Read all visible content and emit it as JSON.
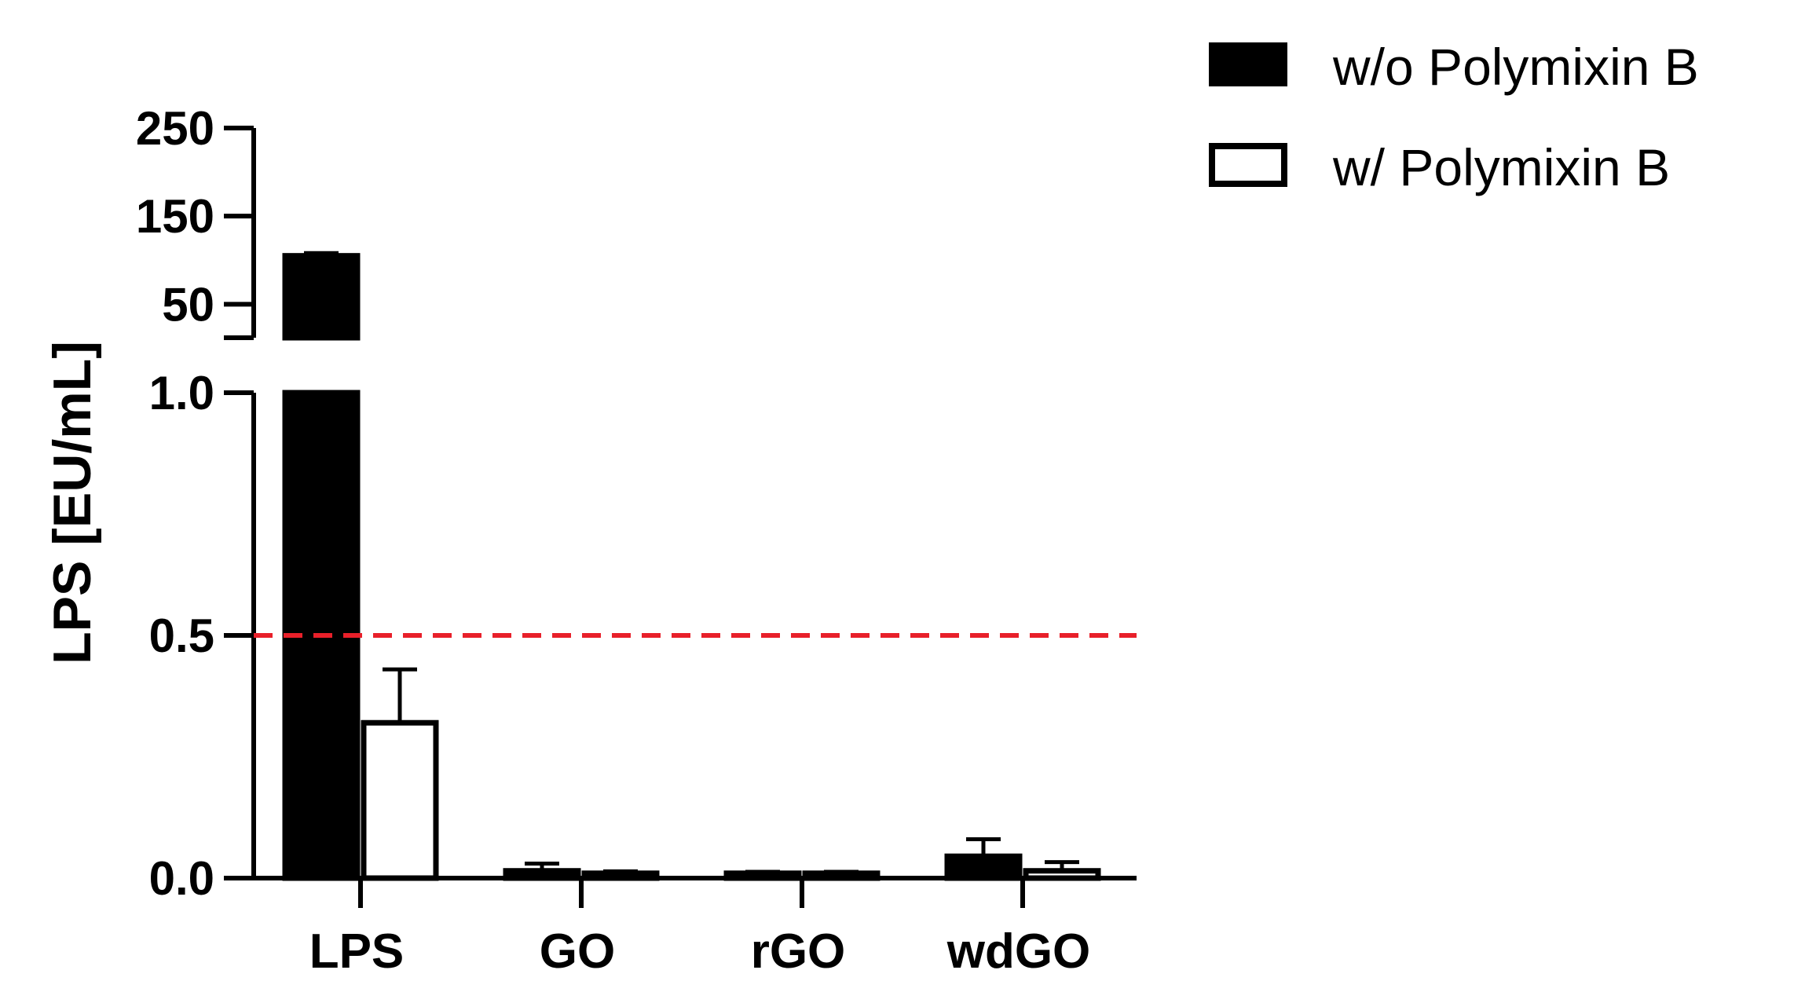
{
  "chart_data": {
    "type": "bar",
    "title": "",
    "xlabel": "",
    "ylabel": "LPS [EU/mL]",
    "categories": [
      "LPS",
      "GO",
      "rGO",
      "wdGO"
    ],
    "series": [
      {
        "name": "w/o Polymixin B",
        "fill": "#000000",
        "values": [
          105,
          0.015,
          0.01,
          0.045
        ],
        "errors": [
          3,
          0.015,
          0.003,
          0.035
        ]
      },
      {
        "name": "w/ Polymixin B",
        "fill": "#ffffff",
        "values": [
          0.32,
          0.01,
          0.01,
          0.015
        ],
        "errors": [
          0.11,
          0.004,
          0.003,
          0.018
        ]
      }
    ],
    "axis_break": true,
    "ylim_lower": [
      0,
      1.0
    ],
    "ylim_upper": [
      0,
      250
    ],
    "yticks_lower": [
      "0.0",
      "0.5",
      "1.0"
    ],
    "yticks_upper": [
      "50",
      "150",
      "250"
    ],
    "reference_line": {
      "value": 0.5,
      "color": "#e8202a",
      "style": "dashed"
    },
    "legend_position": "top-right",
    "grid": false
  }
}
